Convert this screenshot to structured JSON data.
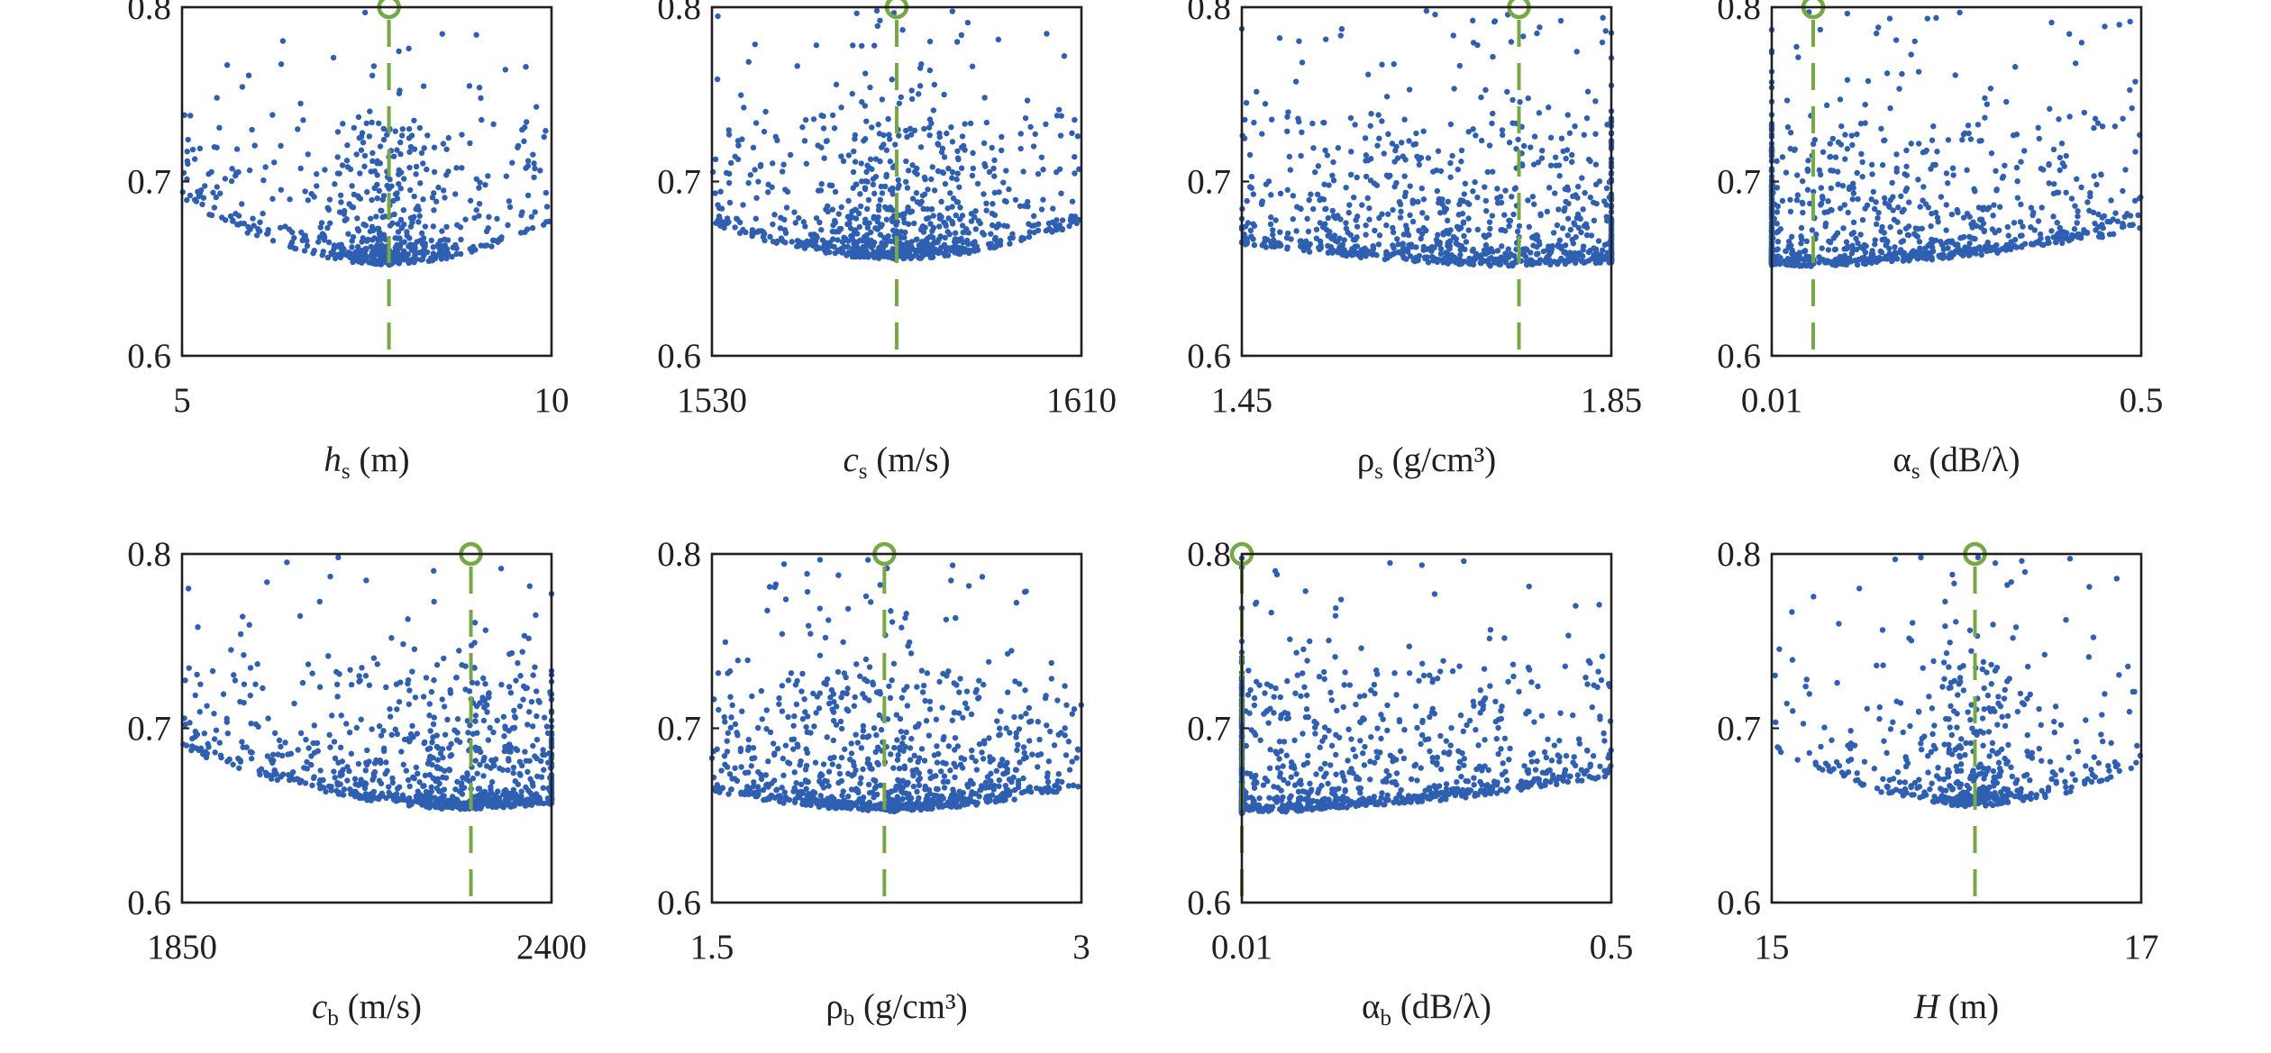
{
  "colors": {
    "points": "#2f5fb0",
    "reference": "#76a845",
    "axes": "#231f20"
  },
  "chart_data": [
    {
      "type": "scatter",
      "xlabel": {
        "main": "h",
        "sub": "s",
        "unit": "(m)",
        "italic": true
      },
      "xlim": [
        5,
        10
      ],
      "ylim": [
        0.6,
        0.8
      ],
      "xticks": [
        "5",
        "10"
      ],
      "yticks": [
        "0.6",
        "0.7",
        "0.8"
      ],
      "true_value": 7.8,
      "optimum": {
        "x": 7.8,
        "y": 0.8
      },
      "distribution": {
        "min": 0.652,
        "width": 0.035,
        "spread": 0.15,
        "curv": 0.11,
        "n": 650,
        "skew": 1.0
      }
    },
    {
      "type": "scatter",
      "xlabel": {
        "main": "c",
        "sub": "s",
        "unit": "(m/s)",
        "italic": true
      },
      "xlim": [
        1530,
        1610
      ],
      "ylim": [
        0.6,
        0.8
      ],
      "xticks": [
        "1530",
        "1610"
      ],
      "yticks": [
        "0.6",
        "0.7",
        "0.8"
      ],
      "true_value": 1570,
      "optimum": {
        "x": 1570,
        "y": 0.8
      },
      "distribution": {
        "min": 0.655,
        "width": 0.045,
        "spread": 0.25,
        "curv": 0.07,
        "n": 900,
        "skew": 1.0
      }
    },
    {
      "type": "scatter",
      "xlabel": {
        "main": "ρ",
        "sub": "s",
        "unit": "(g/cm³)",
        "italic": false
      },
      "xlim": [
        1.45,
        1.85
      ],
      "ylim": [
        0.6,
        0.8
      ],
      "xticks": [
        "1.45",
        "1.85"
      ],
      "yticks": [
        "0.6",
        "0.7",
        "0.8"
      ],
      "true_value": 1.75,
      "optimum": {
        "x": 1.75,
        "y": 0.8
      },
      "distribution": {
        "min": 0.651,
        "width": 0.06,
        "spread": 0.7,
        "curv": 0.015,
        "n": 1000,
        "skew": 1.0
      }
    },
    {
      "type": "scatter",
      "xlabel": {
        "main": "α",
        "sub": "s",
        "unit": "(dB/λ)",
        "italic": false
      },
      "xlim": [
        0.01,
        0.5
      ],
      "ylim": [
        0.6,
        0.8
      ],
      "xticks": [
        "0.01",
        "0.5"
      ],
      "yticks": [
        "0.6",
        "0.7",
        "0.8"
      ],
      "true_value": 0.065,
      "optimum": {
        "x": 0.065,
        "y": 0.8
      },
      "distribution": {
        "min": 0.651,
        "width": 0.06,
        "spread": 0.7,
        "curv": 0.02,
        "n": 1000,
        "skew": 1.0
      }
    },
    {
      "type": "scatter",
      "xlabel": {
        "main": "c",
        "sub": "b",
        "unit": "(m/s)",
        "italic": true
      },
      "xlim": [
        1850,
        2400
      ],
      "ylim": [
        0.6,
        0.8
      ],
      "xticks": [
        "1850",
        "2400"
      ],
      "yticks": [
        "0.6",
        "0.7",
        "0.8"
      ],
      "true_value": 2280,
      "optimum": {
        "x": 2280,
        "y": 0.8
      },
      "distribution": {
        "min": 0.653,
        "width": 0.05,
        "spread": 0.35,
        "curv": 0.05,
        "n": 900,
        "skew": 1.0
      }
    },
    {
      "type": "scatter",
      "xlabel": {
        "main": "ρ",
        "sub": "b",
        "unit": "(g/cm³)",
        "italic": false
      },
      "xlim": [
        1.5,
        3
      ],
      "ylim": [
        0.6,
        0.8
      ],
      "xticks": [
        "1.5",
        "3"
      ],
      "yticks": [
        "0.6",
        "0.7",
        "0.8"
      ],
      "true_value": 2.2,
      "optimum": {
        "x": 2.2,
        "y": 0.8
      },
      "distribution": {
        "min": 0.652,
        "width": 0.05,
        "spread": 0.4,
        "curv": 0.04,
        "n": 950,
        "skew": 1.0
      }
    },
    {
      "type": "scatter",
      "xlabel": {
        "main": "α",
        "sub": "b",
        "unit": "(dB/λ)",
        "italic": false
      },
      "xlim": [
        0.01,
        0.5
      ],
      "ylim": [
        0.6,
        0.8
      ],
      "xticks": [
        "0.01",
        "0.5"
      ],
      "yticks": [
        "0.6",
        "0.7",
        "0.8"
      ],
      "true_value": 0.01,
      "optimum": {
        "x": 0.01,
        "y": 0.8
      },
      "distribution": {
        "min": 0.651,
        "width": 0.06,
        "spread": 0.7,
        "curv": 0.015,
        "n": 1000,
        "skew": 1.0
      }
    },
    {
      "type": "scatter",
      "xlabel": {
        "main": "H",
        "sub": "",
        "unit": "(m)",
        "italic": true
      },
      "xlim": [
        15,
        17
      ],
      "ylim": [
        0.6,
        0.8
      ],
      "xticks": [
        "15",
        "17"
      ],
      "yticks": [
        "0.6",
        "0.7",
        "0.8"
      ],
      "true_value": 16.1,
      "optimum": {
        "x": 16.1,
        "y": 0.8
      },
      "distribution": {
        "min": 0.655,
        "width": 0.035,
        "spread": 0.15,
        "curv": 0.1,
        "n": 550,
        "skew": 1.0
      }
    }
  ]
}
